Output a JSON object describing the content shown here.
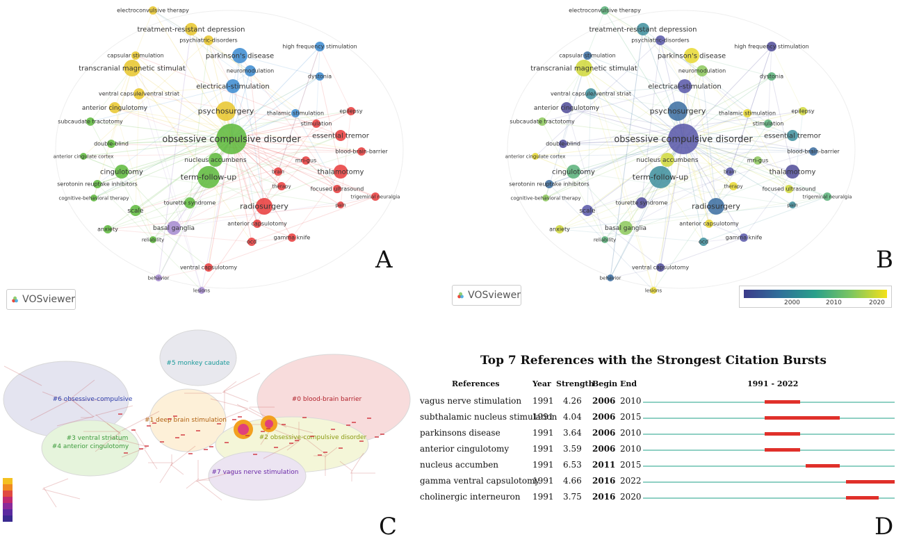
{
  "panelA": {
    "letter": "A",
    "logo_text": "VOSviewer",
    "nodes": [
      {
        "label": "electroconvulsive therapy",
        "c": "yellow"
      },
      {
        "label": "treatment-resistant depression",
        "c": "yellow"
      },
      {
        "label": "psychiatric-disorders",
        "c": "yellow"
      },
      {
        "label": "high frequency stimulation",
        "c": "blue"
      },
      {
        "label": "capsular stimulation",
        "c": "yellow"
      },
      {
        "label": "parkinson's disease",
        "c": "blue"
      },
      {
        "label": "transcranial magnetic stimulat",
        "c": "yellow"
      },
      {
        "label": "neuromodulation",
        "c": "blue"
      },
      {
        "label": "dystonia",
        "c": "blue"
      },
      {
        "label": "ventral capsule/ventral striat",
        "c": "yellow"
      },
      {
        "label": "electrical-stimulation",
        "c": "blue"
      },
      {
        "label": "anterior cingulotomy",
        "c": "yellow"
      },
      {
        "label": "psychosurgery",
        "c": "yellow"
      },
      {
        "label": "thalamic stimulation",
        "c": "blue"
      },
      {
        "label": "epilepsy",
        "c": "red"
      },
      {
        "label": "subcaudate tractotomy",
        "c": "green"
      },
      {
        "label": "stimulation",
        "c": "red"
      },
      {
        "label": "essential tremor",
        "c": "red"
      },
      {
        "label": "obsessive compulsive disorder",
        "c": "green"
      },
      {
        "label": "double-blind",
        "c": "green"
      },
      {
        "label": "blood-brain-barrier",
        "c": "red"
      },
      {
        "label": "anterior cingulate cortex",
        "c": "green"
      },
      {
        "label": "nucleus accumbens",
        "c": "green"
      },
      {
        "label": "mri-gus",
        "c": "red"
      },
      {
        "label": "cingulotomy",
        "c": "green"
      },
      {
        "label": "term-follow-up",
        "c": "green"
      },
      {
        "label": "brain",
        "c": "red"
      },
      {
        "label": "thalamotomy",
        "c": "red"
      },
      {
        "label": "serotonin reuptake inhibitors",
        "c": "green"
      },
      {
        "label": "therapy",
        "c": "red"
      },
      {
        "label": "focused ultrasound",
        "c": "red"
      },
      {
        "label": "cognitive-behavioral therapy",
        "c": "green"
      },
      {
        "label": "trigeminal neuralgia",
        "c": "red"
      },
      {
        "label": "pain",
        "c": "red"
      },
      {
        "label": "scale",
        "c": "green"
      },
      {
        "label": "tourette syndrome",
        "c": "green"
      },
      {
        "label": "radiosurgery",
        "c": "red"
      },
      {
        "label": "anterior capsulotomy",
        "c": "red"
      },
      {
        "label": "anxiety",
        "c": "green"
      },
      {
        "label": "basal ganglia",
        "c": "purple"
      },
      {
        "label": "reliability",
        "c": "green"
      },
      {
        "label": "ocd",
        "c": "red"
      },
      {
        "label": "gamma knife",
        "c": "red"
      },
      {
        "label": "ventral capsulotomy",
        "c": "red"
      },
      {
        "label": "behavior",
        "c": "purple"
      },
      {
        "label": "lesions",
        "c": "purple"
      }
    ]
  },
  "panelB": {
    "letter": "B",
    "logo_text": "VOSviewer",
    "colorbar_ticks": [
      "2000",
      "2010",
      "2020"
    ]
  },
  "panelC": {
    "letter": "C",
    "clusters": [
      {
        "label": "#5 monkey caudate",
        "color": "#1a9a9a"
      },
      {
        "label": "#6 obsessive-compulsive",
        "color": "#2a3aa8"
      },
      {
        "label": "#0 blood-brain barrier",
        "color": "#b0202a"
      },
      {
        "label": "#1 deep brain stimulation",
        "color": "#b06010"
      },
      {
        "label": "#3 ventral striatum",
        "color": "#3a9a3a"
      },
      {
        "label": "#4 anterior cingulotomy",
        "color": "#3a9a3a"
      },
      {
        "label": "#2 obsessive-compulsive disorder",
        "color": "#8a9a10"
      },
      {
        "label": "#7 vagus nerve stimulation",
        "color": "#6a2aa8"
      }
    ]
  },
  "panelD": {
    "letter": "D",
    "title": "Top 7 References with the Strongest Citation Bursts",
    "headers": {
      "references": "References",
      "year": "Year",
      "strength": "Strength",
      "begin": "Begin",
      "end": "End",
      "range": "1991 - 2022"
    },
    "range_start": 1991,
    "range_end": 2022,
    "rows": [
      {
        "reference": "vagus nerve stimulation",
        "year": "1991",
        "strength": "4.26",
        "begin": "2006",
        "end": "2010"
      },
      {
        "reference": "subthalamic nucleus stimulation",
        "year": "1991",
        "strength": "4.04",
        "begin": "2006",
        "end": "2015"
      },
      {
        "reference": "parkinsons disease",
        "year": "1991",
        "strength": "3.64",
        "begin": "2006",
        "end": "2010"
      },
      {
        "reference": "anterior cingulotomy",
        "year": "1991",
        "strength": "3.59",
        "begin": "2006",
        "end": "2010"
      },
      {
        "reference": "nucleus accumben",
        "year": "1991",
        "strength": "6.53",
        "begin": "2011",
        "end": "2015"
      },
      {
        "reference": "gamma ventral capsulotomy",
        "year": "1991",
        "strength": "4.66",
        "begin": "2016",
        "end": "2022"
      },
      {
        "reference": "cholinergic interneuron",
        "year": "1991",
        "strength": "3.75",
        "begin": "2016",
        "end": "2020"
      }
    ]
  }
}
